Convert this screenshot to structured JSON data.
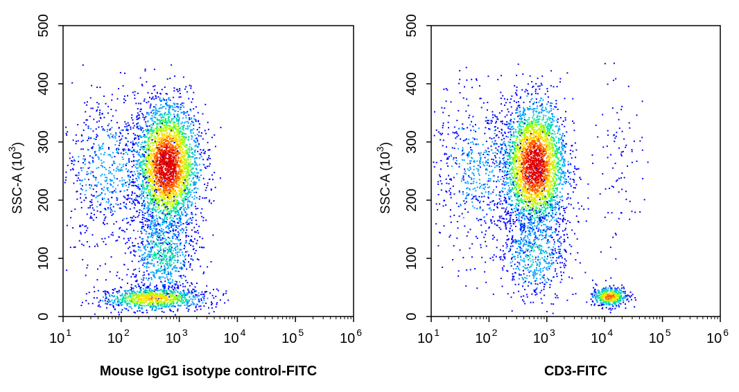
{
  "chart_data": [
    {
      "type": "scatter",
      "title": "",
      "xlabel": "Mouse IgG1 isotype control-FITC",
      "ylabel": "SSC-A",
      "ylabel_unit": "(10",
      "ylabel_unit_exp": "3",
      "ylabel_unit_close": ")",
      "x_scale": "log",
      "xlim": [
        10,
        1000000
      ],
      "ylim": [
        0,
        500
      ],
      "x_ticks": [
        {
          "base": "10",
          "exp": "1"
        },
        {
          "base": "10",
          "exp": "2"
        },
        {
          "base": "10",
          "exp": "3"
        },
        {
          "base": "10",
          "exp": "4"
        },
        {
          "base": "10",
          "exp": "5"
        },
        {
          "base": "10",
          "exp": "6"
        }
      ],
      "y_ticks": [
        "0",
        "100",
        "200",
        "300",
        "400",
        "500"
      ],
      "populations": [
        {
          "name": "main",
          "x_center": 600,
          "x_spread_decades": 0.28,
          "y_center": 260,
          "y_spread": 55,
          "count": 3200,
          "peak_density": 1.0
        },
        {
          "name": "left-spread",
          "x_center": 60,
          "x_spread_decades": 0.45,
          "y_center": 250,
          "y_spread": 70,
          "count": 700,
          "peak_density": 0.2
        },
        {
          "name": "lower-column",
          "x_center": 500,
          "x_spread_decades": 0.3,
          "y_center": 110,
          "y_spread": 40,
          "count": 700,
          "peak_density": 0.35
        },
        {
          "name": "debris-band",
          "x_center": 350,
          "x_spread_decades": 0.45,
          "y_center": 32,
          "y_spread": 10,
          "count": 900,
          "peak_density": 0.7
        }
      ],
      "colormap": [
        "#0000ff",
        "#00a0ff",
        "#00e0a0",
        "#a0ff00",
        "#ffe000",
        "#ff6000",
        "#e00000"
      ]
    },
    {
      "type": "scatter",
      "title": "",
      "xlabel": "CD3-FITC",
      "ylabel": "SSC-A",
      "ylabel_unit": "(10",
      "ylabel_unit_exp": "3",
      "ylabel_unit_close": ")",
      "x_scale": "log",
      "xlim": [
        10,
        1000000
      ],
      "ylim": [
        0,
        500
      ],
      "x_ticks": [
        {
          "base": "10",
          "exp": "1"
        },
        {
          "base": "10",
          "exp": "2"
        },
        {
          "base": "10",
          "exp": "3"
        },
        {
          "base": "10",
          "exp": "4"
        },
        {
          "base": "10",
          "exp": "5"
        },
        {
          "base": "10",
          "exp": "6"
        }
      ],
      "y_ticks": [
        "0",
        "100",
        "200",
        "300",
        "400",
        "500"
      ],
      "populations": [
        {
          "name": "main",
          "x_center": 600,
          "x_spread_decades": 0.28,
          "y_center": 260,
          "y_spread": 55,
          "count": 3000,
          "peak_density": 1.0
        },
        {
          "name": "left-spread",
          "x_center": 60,
          "x_spread_decades": 0.45,
          "y_center": 250,
          "y_spread": 70,
          "count": 650,
          "peak_density": 0.2
        },
        {
          "name": "lower-column",
          "x_center": 600,
          "x_spread_decades": 0.3,
          "y_center": 110,
          "y_spread": 40,
          "count": 600,
          "peak_density": 0.3
        },
        {
          "name": "cd3-positive",
          "x_center": 12000,
          "x_spread_decades": 0.15,
          "y_center": 35,
          "y_spread": 8,
          "count": 450,
          "peak_density": 0.8
        },
        {
          "name": "high-fitc-sparse",
          "x_center": 18000,
          "x_spread_decades": 0.2,
          "y_center": 260,
          "y_spread": 80,
          "count": 90,
          "peak_density": 0.1
        }
      ],
      "colormap": [
        "#0000ff",
        "#00a0ff",
        "#00e0a0",
        "#a0ff00",
        "#ffe000",
        "#ff6000",
        "#e00000"
      ]
    }
  ]
}
